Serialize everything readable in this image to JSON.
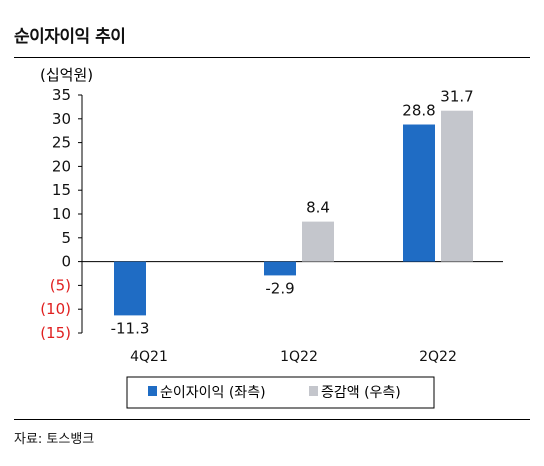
{
  "header": {
    "title": "순이자이익 추이"
  },
  "footer": {
    "source": "자료: 토스뱅크"
  },
  "colors": {
    "primary": "#1f6cc4",
    "secondary": "#c4c6cc",
    "negative_tick": "#e02020"
  },
  "chart_data": {
    "type": "bar",
    "unit_label": "(십억원)",
    "categories": [
      "4Q21",
      "1Q22",
      "2Q22"
    ],
    "series": [
      {
        "name": "순이자이익 (좌측)",
        "values": [
          -11.3,
          -2.9,
          28.8
        ],
        "labels": [
          "-11.3",
          "-2.9",
          "28.8"
        ],
        "color": "#1f6cc4"
      },
      {
        "name": "증감액 (우측)",
        "values": [
          null,
          8.4,
          31.7
        ],
        "labels": [
          "",
          "8.4",
          "31.7"
        ],
        "color": "#c4c6cc"
      }
    ],
    "ylim": [
      -15,
      35
    ],
    "yticks": [
      35,
      30,
      25,
      20,
      15,
      10,
      5,
      0,
      -5,
      -10,
      -15
    ],
    "ytick_labels": [
      "35",
      "30",
      "25",
      "20",
      "15",
      "10",
      "5",
      "0",
      "(5)",
      "(10)",
      "(15)"
    ],
    "legend_position": "bottom",
    "grid": false
  }
}
